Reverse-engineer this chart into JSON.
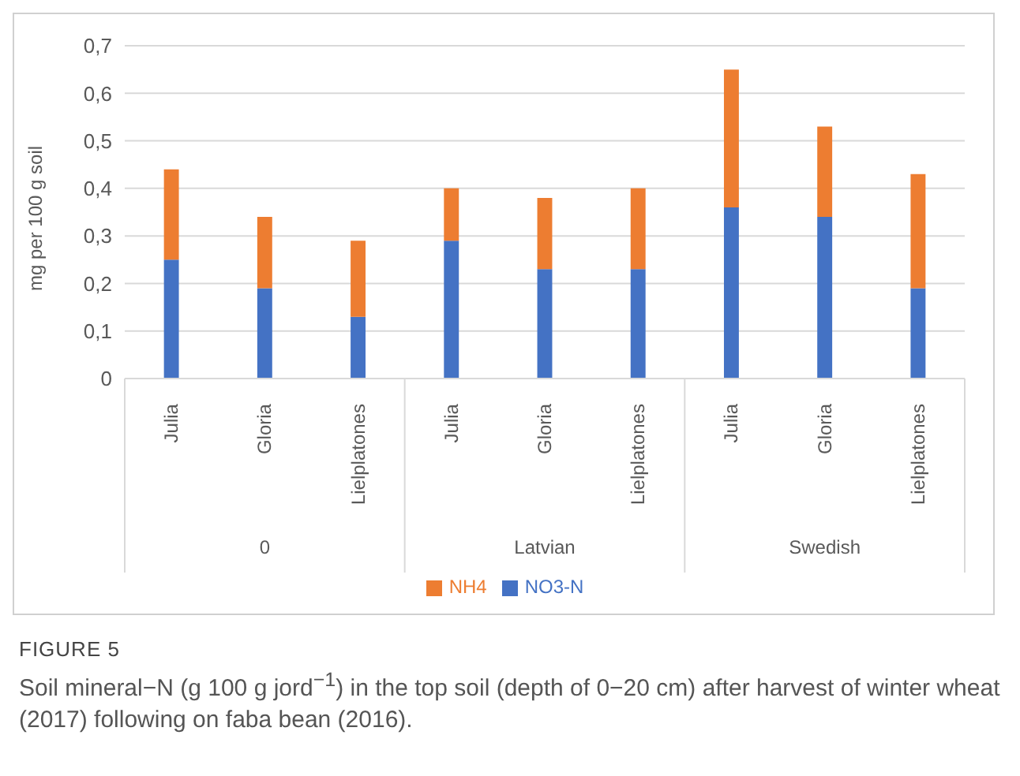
{
  "chart_data": {
    "type": "bar",
    "title": "FIGURE 5",
    "subtitle": "Soil mineral−N (g 100 g jord$^{−1}$) in the top soil (depth of 0−20 cm) after harvest of winter wheat (2017) following on faba bean (2016).",
    "ylabel": "mg per 100 g soil",
    "categories": [
      "Julia",
      "Gloria",
      "Lielplatones",
      "Julia",
      "Gloria",
      "Lielplatones",
      "Julia",
      "Gloria",
      "Lielplatones"
    ],
    "annotations": [
      "0",
      "Latvian",
      "Swedish"
    ],
    "stacked": true,
    "series": [
      {
        "name": "NO3-N",
        "color": "#4472c4",
        "values": [
          0.25,
          0.19,
          0.13,
          0.29,
          0.23,
          0.23,
          0.36,
          0.34,
          0.19
        ]
      },
      {
        "name": "NH4",
        "color": "#ed7d31",
        "values": [
          0.19,
          0.15,
          0.16,
          0.11,
          0.15,
          0.17,
          0.29,
          0.19,
          0.24
        ]
      }
    ],
    "ylim": [
      0,
      0.7
    ],
    "yticks": [
      {
        "value": 0,
        "label": "0"
      },
      {
        "value": 0.1,
        "label": "0,1"
      },
      {
        "value": 0.2,
        "label": "0,2"
      },
      {
        "value": 0.3,
        "label": "0,3"
      },
      {
        "value": 0.4,
        "label": "0,4"
      },
      {
        "value": 0.5,
        "label": "0,5"
      },
      {
        "value": 0.6,
        "label": "0,6"
      },
      {
        "value": 0.7,
        "label": "0,7"
      }
    ],
    "grid": "y",
    "legend": "bottom"
  }
}
